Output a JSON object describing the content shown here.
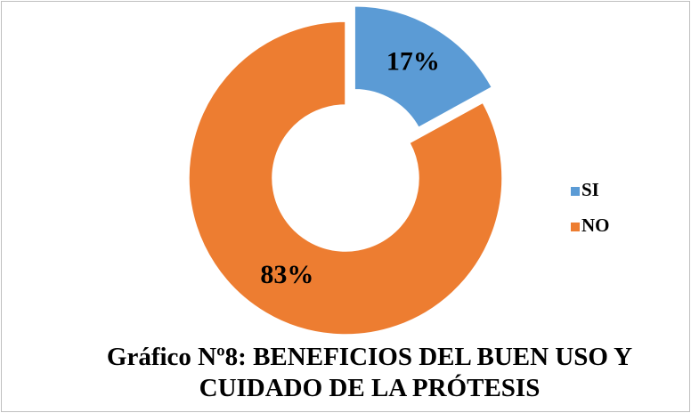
{
  "chart_data": {
    "type": "doughnut",
    "title": "Gráfico Nº8: BENEFICIOS DEL BUEN USO Y CUIDADO DE LA PRÓTESIS",
    "categories": [
      "SI",
      "NO"
    ],
    "values": [
      17,
      83
    ],
    "value_labels": [
      "17%",
      "83%"
    ],
    "colors": [
      "#5b9bd5",
      "#ed7d31"
    ],
    "legend": "right"
  }
}
